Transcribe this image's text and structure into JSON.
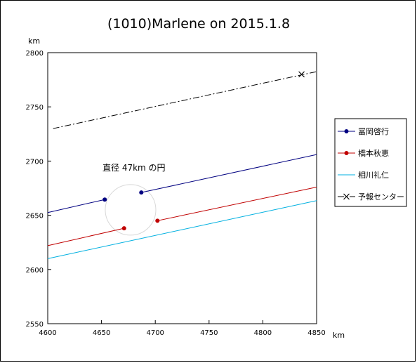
{
  "chart_data": {
    "type": "line",
    "title": "(1010)Marlene on 2015.1.8",
    "xlabel": "km",
    "ylabel": "km",
    "xlim": [
      4600,
      4850
    ],
    "ylim": [
      2550,
      2800
    ],
    "xticks": [
      4600,
      4650,
      4700,
      4750,
      4800,
      4850
    ],
    "yticks": [
      2550,
      2600,
      2650,
      2700,
      2750,
      2800
    ],
    "grid": false,
    "legend_position": "right",
    "annotation": "直径 47km の円",
    "circle": {
      "cx": 4677,
      "cy": 2655,
      "diameter_km": 47
    },
    "series": [
      {
        "name": "冨岡啓行",
        "color": "#000080",
        "style": "solid",
        "marker": "dot",
        "segments": [
          {
            "x": [
              4600,
              4653
            ],
            "y": [
              2652.5,
              2664.5
            ]
          },
          {
            "x": [
              4687,
              4850
            ],
            "y": [
              2671,
              2706
            ]
          }
        ],
        "markers": [
          {
            "x": 4653,
            "y": 2664.5
          },
          {
            "x": 4687,
            "y": 2671
          }
        ]
      },
      {
        "name": "橋本秋恵",
        "color": "#c00000",
        "style": "solid",
        "marker": "dot",
        "segments": [
          {
            "x": [
              4600,
              4671
            ],
            "y": [
              2622,
              2638
            ]
          },
          {
            "x": [
              4702,
              4850
            ],
            "y": [
              2645,
              2676
            ]
          }
        ],
        "markers": [
          {
            "x": 4671,
            "y": 2638
          },
          {
            "x": 4702,
            "y": 2645
          }
        ]
      },
      {
        "name": "相川礼仁",
        "color": "#00b0e0",
        "style": "solid",
        "marker": "none",
        "segments": [
          {
            "x": [
              4600,
              4850
            ],
            "y": [
              2610,
              2663.5
            ]
          }
        ],
        "markers": []
      },
      {
        "name": "予報センター",
        "color": "#000000",
        "style": "dashdot",
        "marker": "x",
        "segments": [
          {
            "x": [
              4605,
              4850
            ],
            "y": [
              2730,
              2782.5
            ]
          }
        ],
        "markers": [
          {
            "x": 4836,
            "y": 2780
          }
        ]
      }
    ]
  }
}
